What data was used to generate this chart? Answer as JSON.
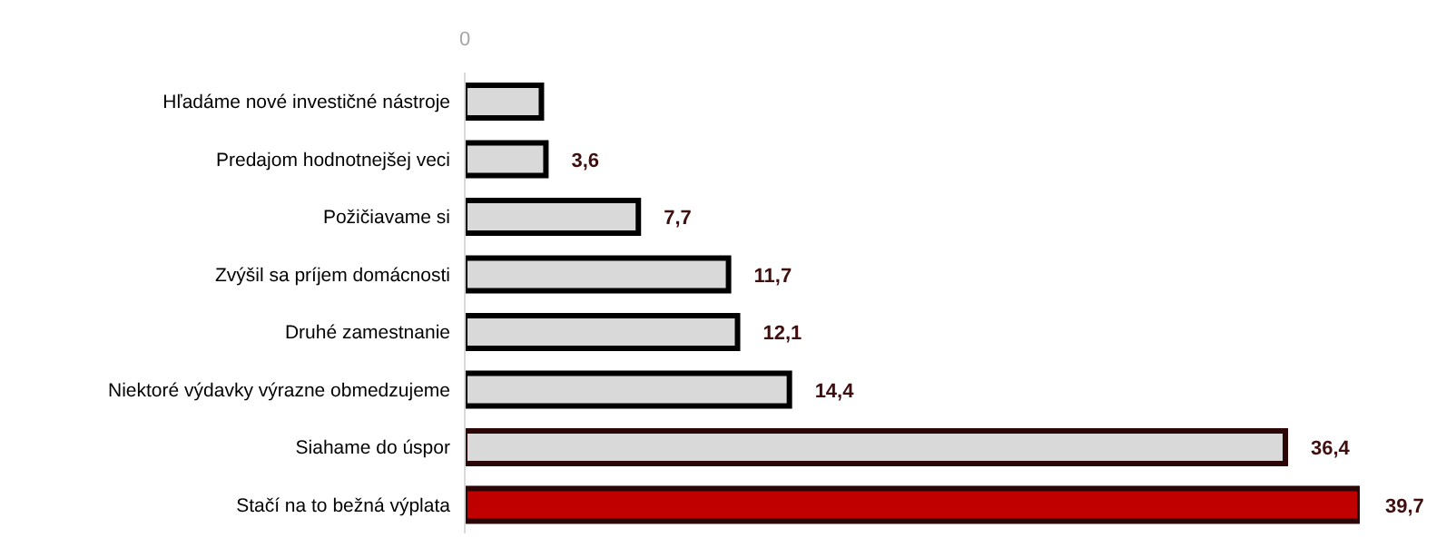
{
  "chart_data": {
    "type": "bar",
    "orientation": "horizontal",
    "categories": [
      "Hľadáme nové investičné nástroje",
      "Predajom hodnotnejšej veci",
      "Požičiavame si",
      "Zvýšil sa príjem domácnosti",
      "Druhé zamestnanie",
      "Niektoré výdavky výrazne obmedzujeme",
      "Siahame do úspor",
      "Stačí na to bežná výplata"
    ],
    "values": [
      3.4,
      3.6,
      7.7,
      11.7,
      12.1,
      14.4,
      36.4,
      39.7
    ],
    "value_labels": [
      null,
      "3,6",
      "7,7",
      "11,7",
      "12,1",
      "14,4",
      "36,4",
      "39,7"
    ],
    "colors": [
      "#d9d9d9",
      "#d9d9d9",
      "#d9d9d9",
      "#d9d9d9",
      "#d9d9d9",
      "#d9d9d9",
      "#d9d9d9",
      "#c00000"
    ],
    "annotations": [
      "0"
    ]
  }
}
